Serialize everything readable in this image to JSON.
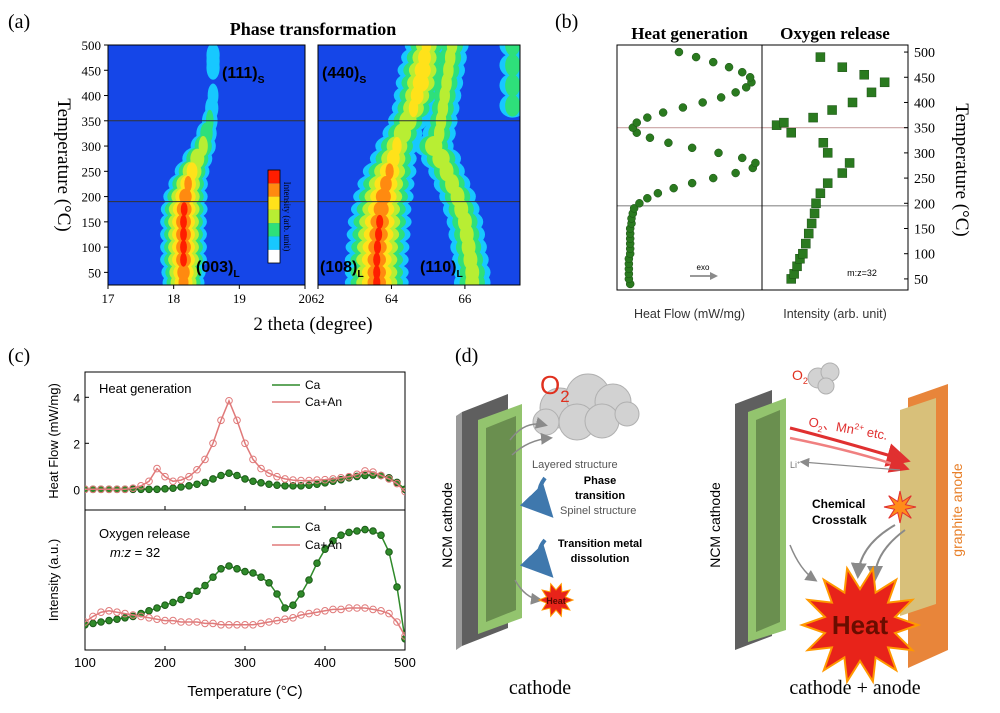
{
  "chart_data": [
    {
      "type": "heatmap",
      "label": "(a)",
      "title": "Phase transformation",
      "xlabel": "2 theta (degree)",
      "ylabel": "Temperature (°C)",
      "ylim": [
        25,
        500
      ],
      "yticks": [
        50,
        100,
        150,
        200,
        250,
        300,
        350,
        400,
        450,
        500
      ],
      "ref_lines": [
        350,
        190
      ],
      "colorbar_label": "Intensity (arb. unit)",
      "colormap": [
        "#1546e8",
        "#17c8ff",
        "#2ee07a",
        "#b8ee33",
        "#ffe21a",
        "#ff8a10",
        "#ff1e00"
      ],
      "panels": [
        {
          "xlim": [
            17,
            20
          ],
          "xticks": [
            17,
            18,
            19,
            20
          ],
          "peaks": [
            [
              {
                "text": "(111)",
                "sub": "S"
              }
            ],
            [
              {
                "text": "(003)",
                "sub": "L"
              }
            ]
          ],
          "ridges": [
            {
              "x": [
                18.15,
                18.15,
                18.15,
                18.15,
                18.15,
                18.15,
                18.16,
                18.18,
                18.22,
                18.28,
                18.36,
                18.45,
                18.5,
                18.55,
                18.58,
                18.6
              ],
              "y": [
                30,
                50,
                75,
                100,
                125,
                150,
                175,
                200,
                225,
                250,
                275,
                300,
                325,
                350,
                375,
                400
              ],
              "intensity": [
                0.75,
                0.8,
                0.85,
                0.85,
                0.85,
                0.85,
                0.85,
                0.8,
                0.7,
                0.6,
                0.5,
                0.4,
                0.3,
                0.2,
                0.15,
                0.1
              ]
            },
            {
              "x": [
                18.6,
                18.6,
                18.6
              ],
              "y": [
                455,
                468,
                480
              ],
              "intensity": [
                0.15,
                0.15,
                0.15
              ]
            }
          ]
        },
        {
          "xlim": [
            62,
            67.5
          ],
          "xticks": [
            62,
            64,
            66
          ],
          "peaks": [
            [
              {
                "text": "(440)",
                "sub": "S"
              }
            ],
            [
              {
                "text": "(108)",
                "sub": "L"
              }
            ],
            [
              {
                "text": "(110)",
                "sub": "L"
              }
            ]
          ],
          "ridges": [
            {
              "x": [
                63.6,
                63.6,
                63.6,
                63.62,
                63.65,
                63.68,
                63.72,
                63.78,
                63.85,
                63.95,
                64.05,
                64.15,
                64.3,
                64.45,
                64.6,
                64.7,
                64.8,
                64.85,
                64.9,
                64.95
              ],
              "y": [
                30,
                50,
                75,
                100,
                125,
                150,
                175,
                200,
                225,
                250,
                275,
                300,
                325,
                350,
                375,
                400,
                425,
                450,
                475,
                500
              ],
              "intensity": [
                0.85,
                0.85,
                0.85,
                0.85,
                0.85,
                0.85,
                0.8,
                0.8,
                0.75,
                0.7,
                0.6,
                0.55,
                0.5,
                0.5,
                0.55,
                0.6,
                0.65,
                0.65,
                0.6,
                0.55
              ]
            },
            {
              "x": [
                66.2,
                66.2,
                66.15,
                66.1,
                66.05,
                66.0,
                65.9,
                65.8,
                65.65,
                65.5,
                65.35,
                65.15
              ],
              "y": [
                30,
                50,
                75,
                100,
                125,
                150,
                175,
                200,
                225,
                250,
                275,
                300
              ],
              "intensity": [
                0.45,
                0.45,
                0.45,
                0.45,
                0.45,
                0.45,
                0.45,
                0.45,
                0.45,
                0.45,
                0.5,
                0.5
              ]
            },
            {
              "x": [
                65.3,
                65.35,
                65.4,
                65.45,
                65.5,
                65.55,
                65.6,
                65.65
              ],
              "y": [
                325,
                350,
                375,
                400,
                425,
                450,
                475,
                500
              ],
              "intensity": [
                0.4,
                0.4,
                0.4,
                0.4,
                0.4,
                0.4,
                0.4,
                0.4
              ]
            },
            {
              "x": [
                67.3,
                67.3,
                67.3,
                67.3
              ],
              "y": [
                380,
                420,
                460,
                500
              ],
              "intensity": [
                0.3,
                0.3,
                0.3,
                0.3
              ]
            }
          ]
        }
      ]
    },
    {
      "type": "scatter",
      "label": "(b)",
      "ylabel": "Temperature (°C)",
      "ylim": [
        28,
        514
      ],
      "yticks": [
        50,
        100,
        150,
        200,
        250,
        300,
        350,
        400,
        450,
        500
      ],
      "ref_lines": [
        350,
        195
      ],
      "ref_line_colors": [
        "#c9a3a3",
        "#8a8a8a"
      ],
      "panels": [
        {
          "title": "Heat generation",
          "xlabel": "Heat Flow (mW/mg)",
          "annotation": "exo",
          "xlim": [
            -0.05,
            1.05
          ],
          "series": [
            {
              "color": "#2a7a1f",
              "marker": "circle",
              "x": [
                0.05,
                0.04,
                0.04,
                0.04,
                0.04,
                0.04,
                0.05,
                0.05,
                0.05,
                0.05,
                0.05,
                0.05,
                0.06,
                0.06,
                0.07,
                0.08,
                0.12,
                0.18,
                0.26,
                0.38,
                0.52,
                0.68,
                0.85,
                0.98,
                1.0,
                0.9,
                0.72,
                0.52,
                0.34,
                0.2,
                0.1,
                0.07,
                0.1,
                0.18,
                0.3,
                0.45,
                0.6,
                0.74,
                0.85,
                0.93,
                0.97,
                0.96,
                0.9,
                0.8,
                0.68,
                0.55,
                0.42
              ],
              "values": [
                40,
                50,
                60,
                70,
                80,
                90,
                100,
                110,
                120,
                130,
                140,
                150,
                160,
                170,
                180,
                190,
                200,
                210,
                220,
                230,
                240,
                250,
                260,
                270,
                280,
                290,
                300,
                310,
                320,
                330,
                340,
                350,
                360,
                370,
                380,
                390,
                400,
                410,
                420,
                430,
                440,
                450,
                460,
                470,
                480,
                490,
                500
              ]
            }
          ]
        },
        {
          "title": "Oxygen release",
          "xlabel": "Intensity (arb. unit)",
          "annotation": "m:z=32",
          "xlim": [
            0,
            1
          ],
          "series": [
            {
              "color": "#2a7a1f",
              "marker": "square",
              "x": [
                0.2,
                0.22,
                0.24,
                0.26,
                0.28,
                0.3,
                0.32,
                0.34,
                0.36,
                0.37,
                0.4,
                0.45,
                0.55,
                0.6,
                0.45,
                0.42,
                0.2,
                0.1,
                0.15,
                0.35,
                0.48,
                0.62,
                0.75,
                0.84,
                0.7,
                0.55,
                0.4
              ],
              "values": [
                50,
                60,
                75,
                90,
                100,
                120,
                140,
                160,
                180,
                200,
                220,
                240,
                260,
                280,
                300,
                320,
                340,
                355,
                360,
                370,
                385,
                400,
                420,
                440,
                455,
                470,
                490
              ]
            }
          ]
        }
      ]
    },
    {
      "type": "line",
      "label": "(c)",
      "xlabel": "Temperature (°C)",
      "xlim": [
        100,
        500
      ],
      "xticks": [
        100,
        200,
        300,
        400,
        500
      ],
      "x": [
        100,
        110,
        120,
        130,
        140,
        150,
        160,
        170,
        180,
        190,
        200,
        210,
        220,
        230,
        240,
        250,
        260,
        270,
        280,
        290,
        300,
        310,
        320,
        330,
        340,
        350,
        360,
        370,
        380,
        390,
        400,
        410,
        420,
        430,
        440,
        450,
        460,
        470,
        480,
        490,
        500
      ],
      "panels": [
        {
          "ylabel": "Heat Flow (mW/mg)",
          "annotation": "Heat generation",
          "ylim": [
            -0.9,
            5.1
          ],
          "yticks": [
            0,
            2,
            4
          ],
          "series": [
            {
              "name": "Ca",
              "color": "#2f8a2a",
              "marker": "filled",
              "values": [
                0,
                0,
                0,
                0,
                0,
                0,
                0,
                0,
                0,
                0,
                0.02,
                0.05,
                0.1,
                0.15,
                0.22,
                0.3,
                0.45,
                0.6,
                0.7,
                0.6,
                0.45,
                0.35,
                0.28,
                0.22,
                0.18,
                0.15,
                0.15,
                0.15,
                0.18,
                0.22,
                0.28,
                0.35,
                0.42,
                0.5,
                0.56,
                0.6,
                0.62,
                0.6,
                0.5,
                0.3,
                0
              ]
            },
            {
              "name": "Ca+An",
              "color": "#e07a7a",
              "marker": "open",
              "values": [
                0,
                0,
                0,
                0,
                0,
                0,
                0.05,
                0.15,
                0.35,
                0.9,
                0.55,
                0.35,
                0.4,
                0.55,
                0.85,
                1.3,
                2.0,
                3.0,
                3.85,
                3.0,
                2.0,
                1.3,
                0.9,
                0.7,
                0.55,
                0.45,
                0.4,
                0.38,
                0.38,
                0.4,
                0.42,
                0.45,
                0.5,
                0.55,
                0.65,
                0.8,
                0.75,
                0.6,
                0.45,
                0.25,
                -0.1
              ]
            }
          ]
        },
        {
          "ylabel": "Intensity (a.u.)",
          "annotation": "Oxygen release",
          "note": {
            "italic": "m:z",
            "text": " = 32"
          },
          "ylim": [
            0,
            1
          ],
          "series": [
            {
              "name": "Ca",
              "color": "#2f8a2a",
              "marker": "filled",
              "values": [
                0.18,
                0.19,
                0.2,
                0.21,
                0.22,
                0.23,
                0.24,
                0.26,
                0.28,
                0.3,
                0.32,
                0.34,
                0.36,
                0.39,
                0.42,
                0.46,
                0.52,
                0.58,
                0.6,
                0.58,
                0.56,
                0.55,
                0.52,
                0.48,
                0.4,
                0.3,
                0.32,
                0.4,
                0.5,
                0.62,
                0.72,
                0.78,
                0.82,
                0.84,
                0.85,
                0.86,
                0.85,
                0.82,
                0.7,
                0.45,
                0.08
              ]
            },
            {
              "name": "Ca+An",
              "color": "#e07a7a",
              "marker": "open",
              "values": [
                0.2,
                0.24,
                0.27,
                0.28,
                0.27,
                0.26,
                0.25,
                0.24,
                0.23,
                0.22,
                0.21,
                0.21,
                0.2,
                0.2,
                0.2,
                0.19,
                0.19,
                0.18,
                0.18,
                0.18,
                0.18,
                0.18,
                0.19,
                0.2,
                0.21,
                0.22,
                0.23,
                0.25,
                0.26,
                0.27,
                0.28,
                0.29,
                0.29,
                0.3,
                0.3,
                0.3,
                0.29,
                0.28,
                0.26,
                0.2,
                0.1
              ]
            }
          ]
        }
      ]
    }
  ],
  "diagram": {
    "label": "(d)",
    "left": {
      "gas": [
        {
          "text": "O",
          "sub": "2"
        }
      ],
      "electrode": "NCM cathode",
      "layered": "Layered structure",
      "transition": [
        "Phase",
        "transition"
      ],
      "spinel": "Spinel structure",
      "dissolution": [
        "Transition metal",
        "dissolution"
      ],
      "heat": "Heat",
      "caption": "cathode"
    },
    "right": {
      "gas": [
        {
          "text": "O",
          "sub": "2"
        }
      ],
      "species": [
        {
          "text": "O",
          "sub": "2"
        },
        {
          "text": "、Mn",
          "sup": "2+"
        },
        {
          "text": " etc."
        }
      ],
      "ion": [
        {
          "text": "Li",
          "sup": "+"
        }
      ],
      "crosstalk": [
        "Chemical",
        "Crosstalk"
      ],
      "cathode": "NCM cathode",
      "anode": "graphite anode",
      "heat": "Heat",
      "caption": "cathode + anode"
    }
  }
}
